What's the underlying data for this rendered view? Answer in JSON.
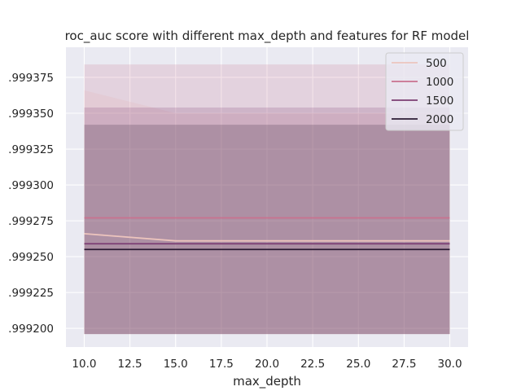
{
  "chart_data": {
    "type": "line",
    "title": "roc_auc score with different max_depth and features for RF model",
    "xlabel": "max_depth",
    "ylabel": "",
    "xlim": [
      9.0,
      31.0
    ],
    "ylim": [
      0.999187,
      0.999396
    ],
    "x_ticks": [
      10.0,
      12.5,
      15.0,
      17.5,
      20.0,
      22.5,
      25.0,
      27.5,
      30.0
    ],
    "x_tick_labels": [
      "10.0",
      "12.5",
      "15.0",
      "17.5",
      "20.0",
      "22.5",
      "25.0",
      "27.5",
      "30.0"
    ],
    "y_ticks": [
      0.9992,
      0.999225,
      0.99925,
      0.999275,
      0.9993,
      0.999325,
      0.99935,
      0.999375
    ],
    "y_tick_labels": [
      ".999200",
      ".999225",
      ".999250",
      ".999275",
      ".999300",
      ".999325",
      ".999350",
      ".999375"
    ],
    "grid": true,
    "legend_position": "top-right",
    "series": [
      {
        "name": "500",
        "color": "#ecc4bd",
        "x": [
          10,
          15,
          20,
          25,
          30
        ],
        "values": [
          0.999266,
          0.999261,
          0.999261,
          0.999261,
          0.999261
        ],
        "band_lower": [
          0.999196,
          0.999196,
          0.999196,
          0.999196,
          0.999196
        ],
        "band_upper": [
          0.999366,
          0.99935,
          0.99935,
          0.99935,
          0.99935
        ]
      },
      {
        "name": "1000",
        "color": "#c9728f",
        "x": [
          10,
          15,
          20,
          25,
          30
        ],
        "values": [
          0.999277,
          0.999277,
          0.999277,
          0.999277,
          0.999277
        ],
        "band_lower": [
          0.999196,
          0.999196,
          0.999196,
          0.999196,
          0.999196
        ],
        "band_upper": [
          0.999384,
          0.999384,
          0.999384,
          0.999384,
          0.999384
        ]
      },
      {
        "name": "1500",
        "color": "#7b3e73",
        "x": [
          10,
          15,
          20,
          25,
          30
        ],
        "values": [
          0.999259,
          0.999259,
          0.999259,
          0.999259,
          0.999259
        ],
        "band_lower": [
          0.999196,
          0.999196,
          0.999196,
          0.999196,
          0.999196
        ],
        "band_upper": [
          0.999354,
          0.999354,
          0.999354,
          0.999354,
          0.999354
        ]
      },
      {
        "name": "2000",
        "color": "#2c1b34",
        "x": [
          10,
          15,
          20,
          25,
          30
        ],
        "values": [
          0.999255,
          0.999255,
          0.999255,
          0.999255,
          0.999255
        ],
        "band_lower": [
          0.999196,
          0.999196,
          0.999196,
          0.999196,
          0.999196
        ],
        "band_upper": [
          0.999342,
          0.999342,
          0.999342,
          0.999342,
          0.999342
        ]
      }
    ]
  }
}
